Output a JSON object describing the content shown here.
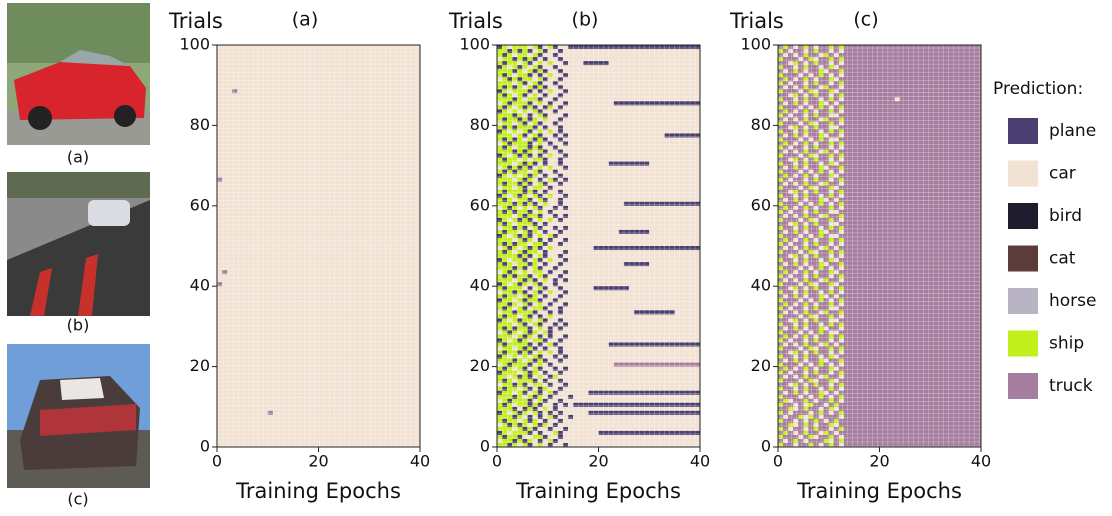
{
  "images": {
    "labels": [
      "(a)",
      "(b)",
      "(c)"
    ]
  },
  "legend": {
    "title": "Prediction:",
    "classes": [
      {
        "name": "plane",
        "color": "#4b3f72"
      },
      {
        "name": "car",
        "color": "#f2e2d3"
      },
      {
        "name": "bird",
        "color": "#1e1b2c"
      },
      {
        "name": "cat",
        "color": "#5b3c3a"
      },
      {
        "name": "horse",
        "color": "#b9b4c4"
      },
      {
        "name": "ship",
        "color": "#c2f01c"
      },
      {
        "name": "truck",
        "color": "#a67c9f"
      }
    ]
  },
  "chart_data": [
    {
      "type": "heatmap",
      "title": "(a)",
      "xlabel": "Training Epochs",
      "ylabel": "Trials",
      "xlim": [
        0,
        40
      ],
      "ylim": [
        0,
        100
      ],
      "xticks": [
        0,
        20,
        40
      ],
      "yticks": [
        0,
        20,
        40,
        60,
        80,
        100
      ],
      "default": 1,
      "points": [
        [
          3,
          88,
          6
        ],
        [
          0,
          66,
          6
        ],
        [
          1,
          43,
          6
        ],
        [
          0,
          40,
          6
        ],
        [
          10,
          8,
          6
        ]
      ]
    },
    {
      "type": "heatmap",
      "title": "(b)",
      "xlabel": "Training Epochs",
      "ylabel": "Trials",
      "xlim": [
        0,
        40
      ],
      "ylim": [
        0,
        100
      ],
      "xticks": [
        0,
        20,
        40
      ],
      "yticks": [
        0,
        20,
        40,
        60,
        80,
        100
      ],
      "default": 1,
      "rows": [
        "550515015101101",
        "155050510150111",
        "505501155011011",
        "051555010115011",
        "555150501101101",
        "150505150510111",
        "505515051011011",
        "555051010150110",
        "051505150101011",
        "555010501510111",
        "505155050110101",
        "150555015011011",
        "555051505101110",
        "055150150150111",
        "505515010511011",
        "155050155101101",
        "505155501011011",
        "551505015105111",
        "055515051011011",
        "505150150110101",
        "150555015101111",
        "555051505011011",
        "051515150110101",
        "505505015151011",
        "155150501011011",
        "505555010150111",
        "051505155011011",
        "555150510101101",
        "150515051501111",
        "505055015101011",
        "555150150110101",
        "051505515011011",
        "505515010151111",
        "155055501101011",
        "505150155011011",
        "550515015101101",
        "055150550110111",
        "505515051011011",
        "155050150151101",
        "505551015011011",
        "051505150110111",
        "555150501510101",
        "505055015011011",
        "150515155101101",
        "555050150110111",
        "505155051011011",
        "051550150151101",
        "555505015011011",
        "505150551011101",
        "150515050151111",
        "505055155011011",
        "555150510101101",
        "051505015150111",
        "505515051011011",
        "155050150110101",
        "505155501011111",
        "051505015151011",
        "555150550110101",
        "505055015101111",
        "150515150110101",
        "555050501511011",
        "505155015011011",
        "051505150151101",
        "505550501011011",
        "155150155101111",
        "505505015011011",
        "555150510150101",
        "051515051011011",
        "505055150110111",
        "150505015151101",
        "555150501011011",
        "505515155011011",
        "051505010151101",
        "555050515011011",
        "505155050110111",
        "150555015101101",
        "505051505011011",
        "555150150110101",
        "051515015151011",
        "505055501011011",
        "155150150110111",
        "505505051511011",
        "555051015011101",
        "051515150110111",
        "505150501051011",
        "150555015101101",
        "555051550110111",
        "505150151011011",
        "051555010151101",
        "505051505011011",
        "555150150110111",
        "150505515011011",
        "505155010151101",
        "555051505011011",
        "051505150110111",
        "505515015151101",
        "155050501011011",
        "505155150110111",
        "550505015011011",
        "051555150150111"
      ],
      "runs": [
        [
          3,
          20,
          40,
          0
        ],
        [
          8,
          18,
          40,
          0
        ],
        [
          10,
          15,
          40,
          0
        ],
        [
          13,
          18,
          40,
          0
        ],
        [
          20,
          23,
          40,
          6
        ],
        [
          25,
          22,
          40,
          0
        ],
        [
          33,
          27,
          35,
          0
        ],
        [
          39,
          19,
          26,
          0
        ],
        [
          45,
          25,
          30,
          0
        ],
        [
          49,
          19,
          40,
          0
        ],
        [
          53,
          24,
          30,
          0
        ],
        [
          60,
          25,
          40,
          0
        ],
        [
          70,
          22,
          30,
          0
        ],
        [
          77,
          33,
          40,
          0
        ],
        [
          85,
          23,
          40,
          0
        ],
        [
          95,
          17,
          22,
          0
        ],
        [
          99,
          14,
          40,
          0
        ]
      ]
    },
    {
      "type": "heatmap",
      "title": "(c)",
      "xlabel": "Training Epochs",
      "ylabel": "Trials",
      "xlim": [
        0,
        40
      ],
      "ylim": [
        0,
        100
      ],
      "xticks": [
        0,
        20,
        40
      ],
      "yticks": [
        0,
        20,
        40,
        60,
        80,
        100
      ],
      "default": 6,
      "rows": [
        "56616656165616",
        "61656166651656",
        "56661651665616",
        "65616566156166",
        "56166165661656",
        "66516561665166",
        "56616165616566",
        "61665156166616",
        "56166616561656",
        "66516566165166",
        "56616156616566",
        "65166561665616",
        "56661616561656",
        "61656166516166",
        "56616566165616",
        "66156165661656",
        "56661651665166",
        "61616566156616",
        "56166165661656",
        "65616561665166",
        "56661616561616",
        "61656166516656",
        "56616566165166",
        "66156165661616",
        "56661651665656",
        "61616566156166",
        "56166165661616",
        "65616561665656",
        "56661616561166",
        "61656166516616",
        "56616566165656",
        "66156165661166",
        "56661651665616",
        "61616566156656",
        "56166165661166",
        "65616561665616",
        "56661616561656",
        "61656166516166",
        "56616566165616",
        "66156165661656",
        "56661651665166",
        "61616566156616",
        "56166165661656",
        "65616561665166",
        "56661616561616",
        "61656166516656",
        "56616566165166",
        "66156165661616",
        "56661651665656",
        "61616566156166",
        "56166165661616",
        "65616561665656",
        "56661616561166",
        "61656166516616",
        "56616566165656",
        "66156165661166",
        "56661651665616",
        "61616566156656",
        "56166165661166",
        "65616561665616",
        "56661616561656",
        "61656166516166",
        "56616566165616",
        "66156165661656",
        "56661651665166",
        "61616566156616",
        "56166165661656",
        "65616561665166",
        "56661616561616",
        "61656166516656",
        "56616566165166",
        "66156165661616",
        "56661651665656",
        "61616566156166",
        "56166165661616",
        "65616561665656",
        "56661616561166",
        "61656166516616",
        "56616566165656",
        "66156165661166",
        "56661651665616",
        "61616566156656",
        "56166165661166",
        "65616561665616",
        "56661616561656",
        "61656166516166",
        "56616566165616",
        "66156165661656",
        "56661651665166",
        "61616566156616",
        "56166165661656",
        "65616561665166",
        "56661616561616",
        "61656166516656",
        "56616566165166",
        "66156165661616",
        "56661651665656",
        "61616566156166",
        "56166165661616",
        "65616561665656"
      ],
      "points": [
        [
          23,
          86,
          1
        ]
      ]
    }
  ]
}
